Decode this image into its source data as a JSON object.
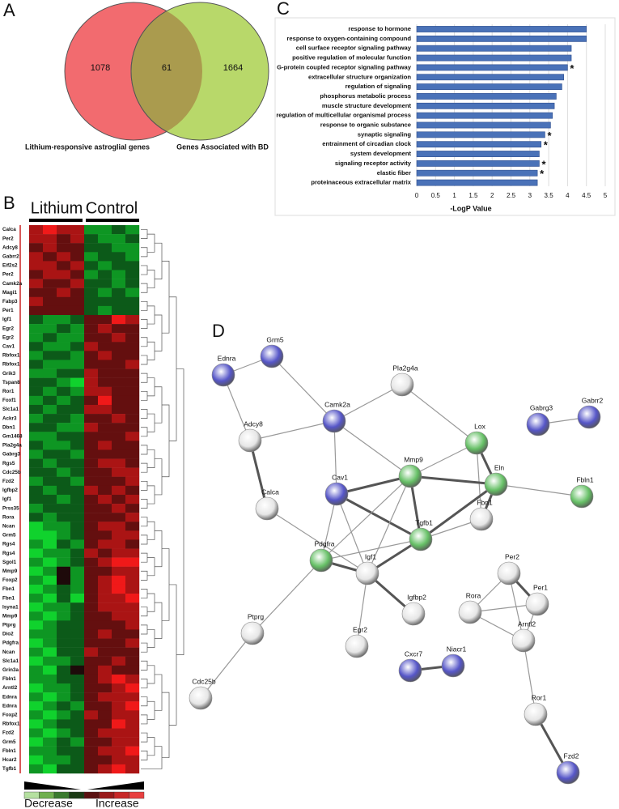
{
  "panel_labels": [
    "A",
    "B",
    "C",
    "D"
  ],
  "venn": {
    "left_count": 1078,
    "overlap_count": 61,
    "right_count": 1664,
    "left_label": "Lithium-responsive astroglial genes",
    "right_label": "Genes Associated with BD",
    "left_color": "#f26b6f",
    "right_color": "#b8d86a",
    "overlap_color": "#aa9b4e"
  },
  "chart_data": {
    "type": "barh",
    "categories": [
      "response to hormone",
      "response to oxygen-containing compound",
      "cell surface receptor signaling pathway",
      "positive regulation of molecular function",
      "G-protein coupled receptor signaling pathway",
      "extracellular structure organization",
      "regulation of signaling",
      "phosphorus metabolic process",
      "muscle structure development",
      "regulation of multicellular organismal process",
      "response to organic substance",
      "synaptic signaling",
      "entrainment of circadian clock",
      "system development",
      "signaling receptor activity",
      "elastic fiber",
      "proteinaceous extracellular matrix"
    ],
    "values": [
      4.5,
      4.5,
      4.1,
      4.1,
      4.0,
      3.9,
      3.85,
      3.7,
      3.65,
      3.6,
      3.55,
      3.4,
      3.3,
      3.25,
      3.25,
      3.2,
      3.2
    ],
    "color": "#4a72b8",
    "xlim": [
      0,
      5
    ],
    "xticks": [
      0,
      0.5,
      1,
      1.5,
      2,
      2.5,
      3,
      3.5,
      4,
      4.5,
      5
    ],
    "xlabel": "-LogP Value",
    "grid": true,
    "annotations": [
      {
        "text": "*",
        "category": 4
      },
      {
        "text": "*",
        "category": 11
      },
      {
        "text": "*",
        "category": 12
      },
      {
        "text": "*",
        "category": 14
      },
      {
        "text": "*",
        "category": 15
      }
    ]
  },
  "heatmap": {
    "groups": [
      "Lithium",
      "Control"
    ],
    "legend_low": "Decrease",
    "legend_high": "Increase",
    "rows": [
      "Calca",
      "Per2",
      "Adcy8",
      "Gabrr2",
      "Eif2s2",
      "Per2",
      "Camk2a",
      "Magi1",
      "Fabp3",
      "Per1",
      "Igf1",
      "Egr2",
      "Egr2",
      "Cav1",
      "Rbfox1",
      "Rbfox1",
      "Grik3",
      "Tspan8",
      "Ror1",
      "Foxf1",
      "Slc1a1",
      "Ackr3",
      "Dbn1",
      "Gm1468",
      "Pla2g4a",
      "Gabrg3",
      "Rgs5",
      "Cdc25b",
      "Fzd2",
      "Igfbp2",
      "Igf1",
      "Prss35",
      "Rora",
      "Ncan",
      "Grm5",
      "Rgs4",
      "Rgs4",
      "Sgol1",
      "Mmp9",
      "Foxp2",
      "Fbn1",
      "Fbn1",
      "Isyna1",
      "Mmp9",
      "Ptprg",
      "Dio2",
      "Pdgfra",
      "Ncan",
      "Slc1a1",
      "Grin3a",
      "Fbln1",
      "Arntl2",
      "Ednra",
      "Ednra",
      "Foxp2",
      "Rbfox1",
      "Fzd2",
      "Grm5",
      "Fbln1",
      "Hcar2",
      "Tgfb1"
    ],
    "values": [
      [
        2,
        3,
        2,
        2,
        -2,
        -2,
        -1,
        -2
      ],
      [
        2,
        2,
        1,
        2,
        -1,
        -2,
        -2,
        -1
      ],
      [
        1,
        2,
        1,
        1,
        -1,
        -1,
        -2,
        -2
      ],
      [
        2,
        1,
        2,
        1,
        -2,
        -1,
        -1,
        -2
      ],
      [
        2,
        2,
        1,
        2,
        -1,
        -2,
        -1,
        -1
      ],
      [
        1,
        2,
        2,
        1,
        -2,
        -1,
        -2,
        -1
      ],
      [
        2,
        1,
        1,
        2,
        -1,
        -1,
        -2,
        -1
      ],
      [
        1,
        1,
        2,
        1,
        -1,
        -2,
        -1,
        -2
      ],
      [
        2,
        1,
        1,
        1,
        -1,
        -1,
        -1,
        -1
      ],
      [
        1,
        1,
        1,
        1,
        -1,
        -2,
        -1,
        -1
      ],
      [
        -1,
        -2,
        -2,
        -1,
        1,
        1,
        3,
        2
      ],
      [
        -2,
        -2,
        -1,
        -2,
        1,
        2,
        1,
        1
      ],
      [
        -2,
        -1,
        -2,
        -2,
        1,
        1,
        2,
        1
      ],
      [
        -1,
        -2,
        -2,
        -1,
        2,
        1,
        1,
        1
      ],
      [
        -2,
        -1,
        -1,
        -2,
        1,
        2,
        1,
        1
      ],
      [
        -1,
        -2,
        -2,
        -2,
        1,
        1,
        1,
        2
      ],
      [
        -2,
        -2,
        -1,
        -1,
        2,
        1,
        1,
        1
      ],
      [
        -1,
        -1,
        -2,
        -3,
        2,
        1,
        1,
        1
      ],
      [
        -1,
        -2,
        -1,
        -2,
        2,
        2,
        1,
        1
      ],
      [
        -2,
        -1,
        -2,
        -1,
        1,
        3,
        1,
        1
      ],
      [
        -1,
        -2,
        -1,
        -1,
        2,
        2,
        1,
        1
      ],
      [
        -2,
        -1,
        -1,
        -2,
        1,
        1,
        2,
        1
      ],
      [
        -1,
        -1,
        -2,
        -2,
        2,
        1,
        1,
        1
      ],
      [
        -2,
        -2,
        -1,
        -1,
        1,
        1,
        1,
        2
      ],
      [
        -1,
        -2,
        -2,
        -1,
        1,
        2,
        1,
        1
      ],
      [
        -2,
        -1,
        -1,
        -2,
        1,
        1,
        1,
        1
      ],
      [
        -1,
        -2,
        -1,
        -1,
        1,
        2,
        2,
        1
      ],
      [
        -1,
        -1,
        -2,
        -1,
        1,
        1,
        2,
        2
      ],
      [
        -2,
        -1,
        -1,
        -2,
        1,
        1,
        1,
        2
      ],
      [
        -1,
        -2,
        -1,
        -1,
        2,
        1,
        2,
        1
      ],
      [
        -1,
        -1,
        -2,
        -1,
        1,
        2,
        1,
        2
      ],
      [
        -2,
        -1,
        -1,
        -1,
        1,
        1,
        2,
        1
      ],
      [
        -1,
        -2,
        -1,
        -1,
        1,
        1,
        1,
        2
      ],
      [
        -3,
        -2,
        -2,
        -1,
        1,
        2,
        2,
        1
      ],
      [
        -3,
        -3,
        -2,
        -1,
        1,
        1,
        2,
        2
      ],
      [
        -2,
        -3,
        -1,
        -2,
        1,
        2,
        2,
        1
      ],
      [
        -3,
        -2,
        -2,
        -1,
        2,
        1,
        2,
        2
      ],
      [
        -2,
        -3,
        -2,
        -1,
        1,
        2,
        3,
        3
      ],
      [
        -3,
        -2,
        0,
        -2,
        1,
        1,
        2,
        2
      ],
      [
        -2,
        -3,
        0,
        -2,
        1,
        2,
        3,
        2
      ],
      [
        -3,
        -2,
        -1,
        -2,
        1,
        2,
        3,
        2
      ],
      [
        -2,
        -3,
        -1,
        -3,
        1,
        2,
        2,
        3
      ],
      [
        -3,
        -2,
        -2,
        -1,
        1,
        2,
        2,
        2
      ],
      [
        -2,
        -3,
        -2,
        -1,
        1,
        1,
        2,
        2
      ],
      [
        -3,
        -2,
        -1,
        -1,
        1,
        1,
        1,
        2
      ],
      [
        -2,
        -2,
        -1,
        -1,
        1,
        2,
        1,
        1
      ],
      [
        -3,
        -2,
        -1,
        -1,
        1,
        1,
        1,
        2
      ],
      [
        -2,
        -3,
        -1,
        -1,
        2,
        1,
        1,
        1
      ],
      [
        -3,
        -2,
        -2,
        -1,
        1,
        1,
        2,
        1
      ],
      [
        -2,
        -3,
        -1,
        0,
        1,
        2,
        1,
        1
      ],
      [
        -2,
        -2,
        -1,
        -1,
        1,
        2,
        3,
        2
      ],
      [
        -3,
        -2,
        -2,
        -1,
        1,
        1,
        2,
        3
      ],
      [
        -2,
        -3,
        -2,
        -1,
        1,
        2,
        2,
        2
      ],
      [
        -3,
        -2,
        -1,
        -2,
        1,
        1,
        2,
        3
      ],
      [
        -2,
        -3,
        -2,
        -1,
        2,
        1,
        2,
        2
      ],
      [
        -3,
        -2,
        -1,
        -1,
        1,
        1,
        3,
        2
      ],
      [
        -2,
        -3,
        -2,
        -1,
        1,
        2,
        2,
        2
      ],
      [
        -3,
        -2,
        -1,
        -2,
        1,
        1,
        2,
        2
      ],
      [
        -2,
        -2,
        -1,
        -1,
        1,
        2,
        2,
        3
      ],
      [
        -3,
        -2,
        -2,
        -1,
        1,
        1,
        2,
        2
      ],
      [
        -2,
        -3,
        -1,
        -1,
        1,
        2,
        3,
        2
      ]
    ]
  },
  "network": {
    "nodes": [
      {
        "label": "Ednra",
        "color": "#5656c8"
      },
      {
        "label": "Grm5",
        "color": "#5656c8"
      },
      {
        "label": "Pla2g4a",
        "color": "#e6e6e6"
      },
      {
        "label": "Camk2a",
        "color": "#5656c8"
      },
      {
        "label": "Adcy8",
        "color": "#e6e6e6"
      },
      {
        "label": "Lox",
        "color": "#66c066"
      },
      {
        "label": "Gabrg3",
        "color": "#5656c8"
      },
      {
        "label": "Gabrr2",
        "color": "#5656c8"
      },
      {
        "label": "Mmp9",
        "color": "#66c066"
      },
      {
        "label": "Eln",
        "color": "#66c066"
      },
      {
        "label": "Cav1",
        "color": "#5656c8"
      },
      {
        "label": "Fbln1",
        "color": "#66c066"
      },
      {
        "label": "Calca",
        "color": "#e6e6e6"
      },
      {
        "label": "Fbn1",
        "color": "#e6e6e6"
      },
      {
        "label": "Tgfb1",
        "color": "#66c066"
      },
      {
        "label": "Pdgfra",
        "color": "#66c066"
      },
      {
        "label": "Igf1",
        "color": "#e6e6e6"
      },
      {
        "label": "Per2",
        "color": "#e6e6e6"
      },
      {
        "label": "Per1",
        "color": "#e6e6e6"
      },
      {
        "label": "Rora",
        "color": "#e6e6e6"
      },
      {
        "label": "Igfbp2",
        "color": "#e6e6e6"
      },
      {
        "label": "Ptprg",
        "color": "#e6e6e6"
      },
      {
        "label": "Arntl2",
        "color": "#e6e6e6"
      },
      {
        "label": "Egr2",
        "color": "#e6e6e6"
      },
      {
        "label": "Cxcr7",
        "color": "#5656c8"
      },
      {
        "label": "Niacr1",
        "color": "#5656c8"
      },
      {
        "label": "Cdc25b",
        "color": "#e6e6e6"
      },
      {
        "label": "Ror1",
        "color": "#e6e6e6"
      },
      {
        "label": "Fzd2",
        "color": "#5656c8"
      }
    ],
    "edges": [
      [
        0,
        1
      ],
      [
        0,
        4
      ],
      [
        3,
        1
      ],
      [
        3,
        4
      ],
      [
        3,
        2
      ],
      [
        2,
        5
      ],
      [
        3,
        8
      ],
      [
        3,
        10
      ],
      [
        4,
        12
      ],
      [
        12,
        16
      ],
      [
        10,
        8
      ],
      [
        10,
        14
      ],
      [
        10,
        15
      ],
      [
        10,
        16
      ],
      [
        5,
        8
      ],
      [
        5,
        9
      ],
      [
        5,
        13
      ],
      [
        9,
        8
      ],
      [
        9,
        13
      ],
      [
        9,
        14
      ],
      [
        9,
        11
      ],
      [
        8,
        14
      ],
      [
        8,
        16
      ],
      [
        8,
        15
      ],
      [
        13,
        14
      ],
      [
        14,
        15
      ],
      [
        14,
        16
      ],
      [
        15,
        16
      ],
      [
        16,
        20
      ],
      [
        16,
        23
      ],
      [
        15,
        21
      ],
      [
        21,
        26
      ],
      [
        17,
        18
      ],
      [
        17,
        19
      ],
      [
        17,
        22
      ],
      [
        18,
        19
      ],
      [
        18,
        22
      ],
      [
        19,
        22
      ],
      [
        22,
        27
      ],
      [
        27,
        28
      ],
      [
        24,
        25
      ],
      [
        6,
        7
      ]
    ]
  }
}
